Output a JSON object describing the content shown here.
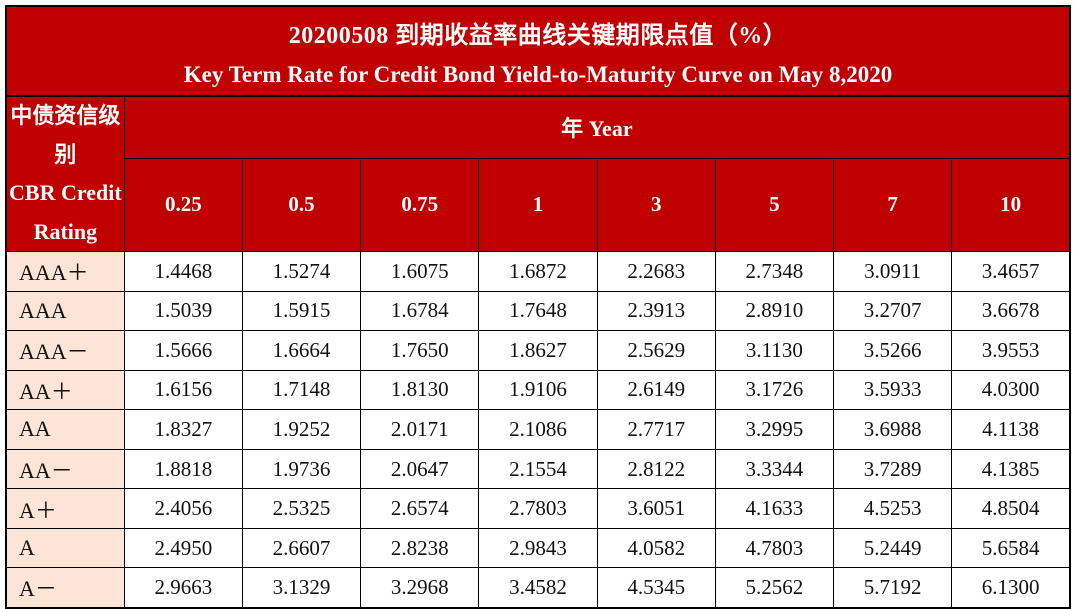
{
  "colors": {
    "header_red": "#C00000",
    "rating_cell_pink": "#FCE4D6",
    "header_text": "#FFFFFF",
    "body_text": "#111111",
    "border_black": "#000000"
  },
  "chart_data": {
    "type": "table",
    "title_cn": "20200508 到期收益率曲线关键期限点值（%）",
    "title_en": "Key Term Rate for Credit Bond Yield-to-Maturity Curve on May 8,2020",
    "row_header_cn": "中债资信级别",
    "row_header_en": "CBR Credit Rating",
    "column_group_label": "年 Year",
    "columns": [
      "0.25",
      "0.5",
      "0.75",
      "1",
      "3",
      "5",
      "7",
      "10"
    ],
    "rows": [
      {
        "rating": "AAA＋",
        "values": [
          1.4468,
          1.5274,
          1.6075,
          1.6872,
          2.2683,
          2.7348,
          3.0911,
          3.4657
        ]
      },
      {
        "rating": "AAA",
        "values": [
          1.5039,
          1.5915,
          1.6784,
          1.7648,
          2.3913,
          2.891,
          3.2707,
          3.6678
        ]
      },
      {
        "rating": "AAA－",
        "values": [
          1.5666,
          1.6664,
          1.765,
          1.8627,
          2.5629,
          3.113,
          3.5266,
          3.9553
        ]
      },
      {
        "rating": "AA＋",
        "values": [
          1.6156,
          1.7148,
          1.813,
          1.9106,
          2.6149,
          3.1726,
          3.5933,
          4.03
        ]
      },
      {
        "rating": "AA",
        "values": [
          1.8327,
          1.9252,
          2.0171,
          2.1086,
          2.7717,
          3.2995,
          3.6988,
          4.1138
        ]
      },
      {
        "rating": "AA－",
        "values": [
          1.8818,
          1.9736,
          2.0647,
          2.1554,
          2.8122,
          3.3344,
          3.7289,
          4.1385
        ]
      },
      {
        "rating": "A＋",
        "values": [
          2.4056,
          2.5325,
          2.6574,
          2.7803,
          3.6051,
          4.1633,
          4.5253,
          4.8504
        ]
      },
      {
        "rating": "A",
        "values": [
          2.495,
          2.6607,
          2.8238,
          2.9843,
          4.0582,
          4.7803,
          5.2449,
          5.6584
        ]
      },
      {
        "rating": "A－",
        "values": [
          2.9663,
          3.1329,
          3.2968,
          3.4582,
          4.5345,
          5.2562,
          5.7192,
          6.13
        ]
      }
    ]
  }
}
